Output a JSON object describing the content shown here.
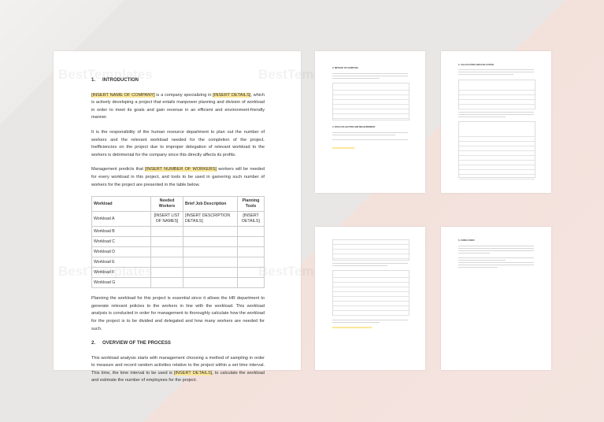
{
  "watermark": "BestTemplates",
  "main": {
    "s1_num": "1.",
    "s1_title": "INTRODUCTION",
    "p1": {
      "hl1": "[INSERT NAME OF COMPANY]",
      "t1": " is a company specializing in ",
      "hl2": "[INSERT DETAILS]",
      "t2": ", which is actively developing a project that entails manpower planning and division of workload in order to meet its goals and gain revenue in an efficient and environment-friendly manner."
    },
    "p2": "It is the responsibility of the human resource department to plan out the number of workers and the relevant workload needed for the completion of the project. Inefficiencies on the project due to improper delegation of relevant workload to the workers is detrimental for the company since this directly affects its profits.",
    "p3": {
      "t1": "Management predicts that ",
      "hl": "[INSERT NUMBER OF WORKERS]",
      "t2": " workers will be needed for every workload in this project, and tools to be used in garnering such number of workers for the project are presented in the table below."
    },
    "table": {
      "headers": [
        "Workload",
        "Needed Workers",
        "Brief Job Description",
        "Planning Tools"
      ],
      "rows": [
        [
          "Workload A",
          "[INSERT LIST OF NAMES]",
          "[INSERT DESCRIPTION DETAILS]",
          "[INSERT DETAILS]"
        ],
        [
          "Workload B",
          "",
          "",
          ""
        ],
        [
          "Workload C",
          "",
          "",
          ""
        ],
        [
          "Workload D",
          "",
          "",
          ""
        ],
        [
          "Workload E",
          "",
          "",
          ""
        ],
        [
          "Workload F",
          "",
          "",
          ""
        ],
        [
          "Workload G",
          "",
          "",
          ""
        ]
      ]
    },
    "p4": "Planning the workload for this project is essential since it allows the HR department to generate relevant policies to the workers in line with the workload. This workload analysis is conducted in order for management to thoroughly calculate how the workload for the project is to be divided and delegated and how many workers are needed for such.",
    "s2_num": "2.",
    "s2_title": "OVERVIEW OF THE PROCESS",
    "p5": {
      "t1": "This workload analysis starts with management choosing a method of sampling in order to measure and record random activities relative to the project within a set time interval. This time, the time interval to be used is ",
      "hl": "[INSERT DETAILS]",
      "t2": ", to calculate the workload and estimate the number of employees for the project."
    }
  },
  "thumbs": {
    "t1_h1": "3.   METHOD OF SAMPLING",
    "t1_h2": "4.   DATA COLLECTION AND MEASUREMENT",
    "t2_h1": "5.   CALCULATION AND EVALUATION",
    "t4_h1": "6.   CONCLUSION"
  },
  "colors": {
    "highlight": "#fbe79a",
    "background": "#e9e7e6",
    "accent_pink": "#f4e4df"
  }
}
